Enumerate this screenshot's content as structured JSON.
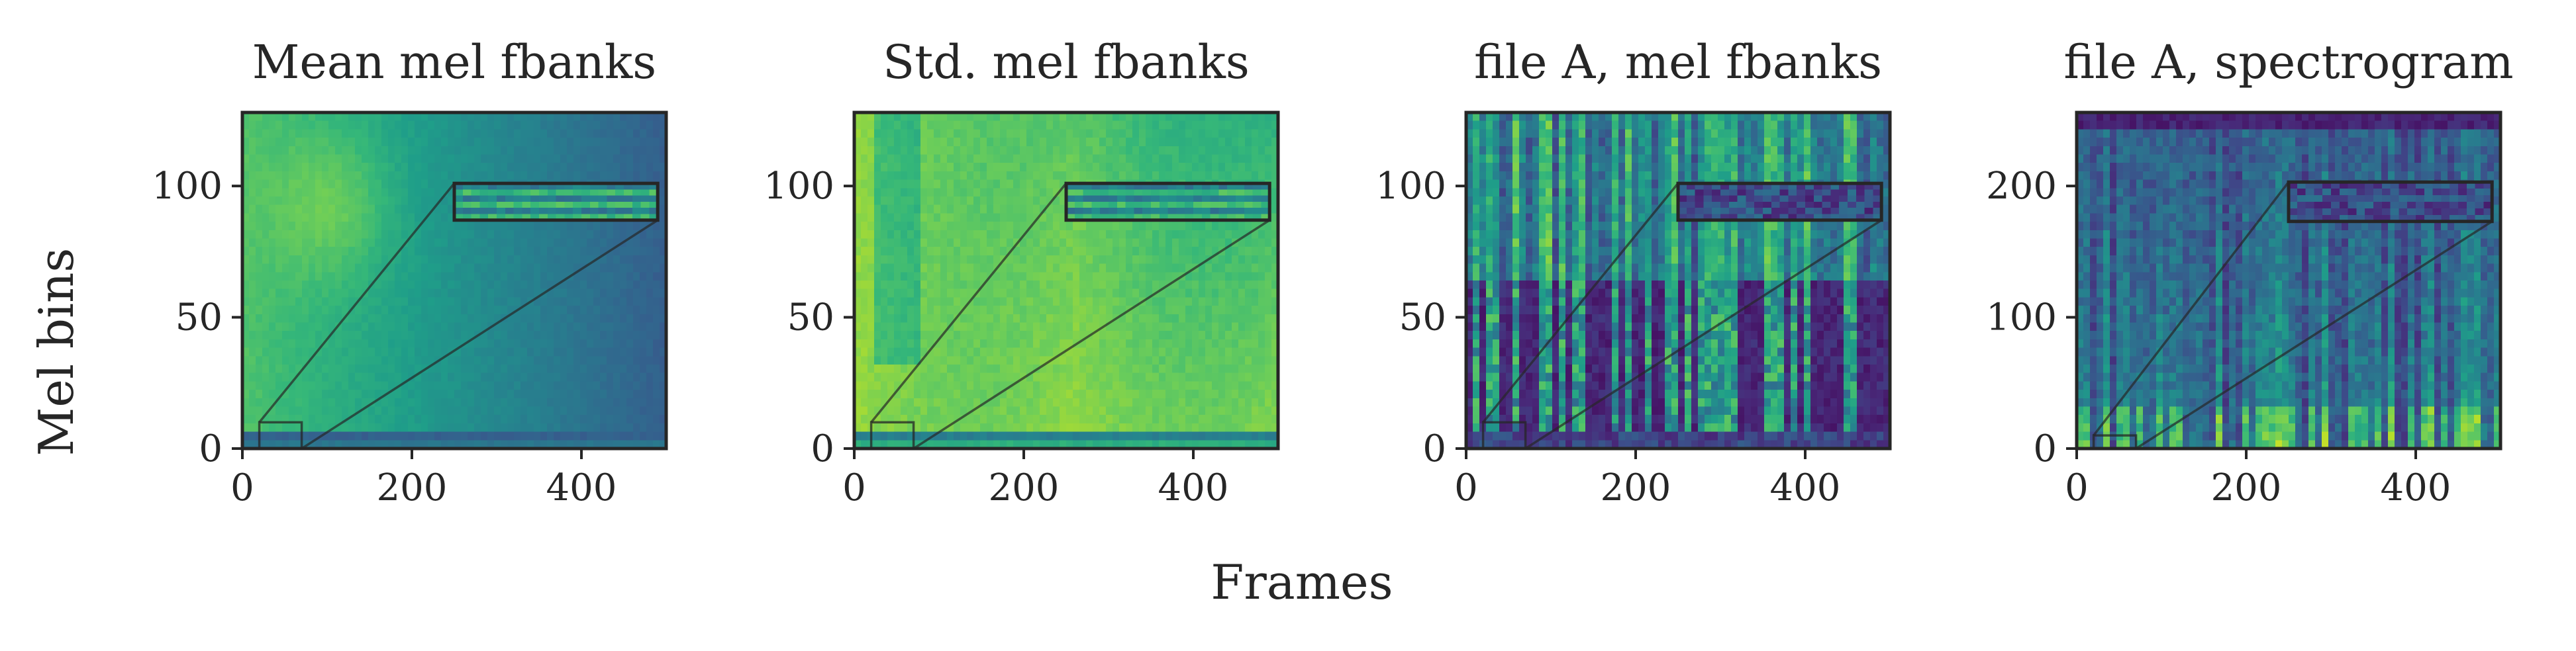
{
  "figure": {
    "xlabel": "Frames",
    "ylabel": "Mel bins"
  },
  "chart_data": [
    {
      "type": "heatmap",
      "title": "Mean mel fbanks",
      "colormap": "viridis",
      "xlim": [
        0,
        500
      ],
      "ylim": [
        0,
        128
      ],
      "xticks": [
        "0",
        "200",
        "400"
      ],
      "xtick_values": [
        0,
        200,
        400
      ],
      "yticks": [
        "0",
        "50",
        "100"
      ],
      "ytick_values": [
        0,
        50,
        100
      ],
      "zoom_region": {
        "x": [
          20,
          70
        ],
        "y": [
          0,
          10
        ]
      },
      "inset_extent": {
        "x": [
          250,
          490
        ],
        "y": [
          87,
          101
        ]
      },
      "pattern": "mean"
    },
    {
      "type": "heatmap",
      "title": "Std. mel fbanks",
      "colormap": "viridis",
      "xlim": [
        0,
        500
      ],
      "ylim": [
        0,
        128
      ],
      "xticks": [
        "0",
        "200",
        "400"
      ],
      "xtick_values": [
        0,
        200,
        400
      ],
      "yticks": [
        "0",
        "50",
        "100"
      ],
      "ytick_values": [
        0,
        50,
        100
      ],
      "zoom_region": {
        "x": [
          20,
          70
        ],
        "y": [
          0,
          10
        ]
      },
      "inset_extent": {
        "x": [
          250,
          490
        ],
        "y": [
          87,
          101
        ]
      },
      "pattern": "std"
    },
    {
      "type": "heatmap",
      "title": "file A, mel fbanks",
      "colormap": "viridis",
      "xlim": [
        0,
        500
      ],
      "ylim": [
        0,
        128
      ],
      "xticks": [
        "0",
        "200",
        "400"
      ],
      "xtick_values": [
        0,
        200,
        400
      ],
      "yticks": [
        "0",
        "50",
        "100"
      ],
      "ytick_values": [
        0,
        50,
        100
      ],
      "zoom_region": {
        "x": [
          20,
          70
        ],
        "y": [
          0,
          10
        ]
      },
      "inset_extent": {
        "x": [
          250,
          490
        ],
        "y": [
          87,
          101
        ]
      },
      "pattern": "speech"
    },
    {
      "type": "heatmap",
      "title": "file A, spectrogram",
      "colormap": "viridis",
      "xlim": [
        0,
        500
      ],
      "ylim": [
        0,
        256
      ],
      "xticks": [
        "0",
        "200",
        "400"
      ],
      "xtick_values": [
        0,
        200,
        400
      ],
      "yticks": [
        "0",
        "100",
        "200"
      ],
      "ytick_values": [
        0,
        100,
        200
      ],
      "zoom_region": {
        "x": [
          20,
          70
        ],
        "y": [
          0,
          10
        ]
      },
      "inset_extent": {
        "x": [
          250,
          490
        ],
        "y": [
          173,
          203
        ]
      },
      "pattern": "spec"
    }
  ]
}
